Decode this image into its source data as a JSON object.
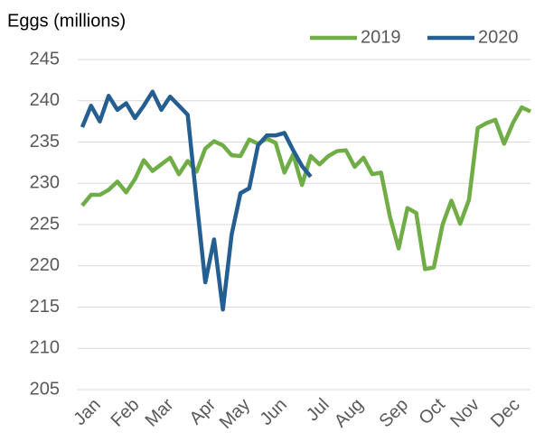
{
  "chart_data": {
    "type": "line",
    "y_axis_label": "Eggs (millions)",
    "x": [
      1,
      2,
      3,
      4,
      5,
      6,
      7,
      8,
      9,
      10,
      11,
      12,
      13,
      14,
      15,
      16,
      17,
      18,
      19,
      20,
      21,
      22,
      23,
      24,
      25,
      26,
      27,
      28,
      29,
      30,
      31,
      32,
      33,
      34,
      35,
      36,
      37,
      38,
      39,
      40,
      41,
      42,
      43,
      44,
      45,
      46,
      47,
      48,
      49,
      50,
      51,
      52
    ],
    "xlim": [
      1,
      52
    ],
    "xticks": [
      {
        "value": 2.8,
        "label": "Jan"
      },
      {
        "value": 7.2,
        "label": "Feb"
      },
      {
        "value": 11.1,
        "label": "Mar"
      },
      {
        "value": 15.9,
        "label": "Apr"
      },
      {
        "value": 19.8,
        "label": "May"
      },
      {
        "value": 24,
        "label": "Jun"
      },
      {
        "value": 28.8,
        "label": "Jul"
      },
      {
        "value": 32.7,
        "label": "Aug"
      },
      {
        "value": 37.8,
        "label": "Sep"
      },
      {
        "value": 42,
        "label": "Oct"
      },
      {
        "value": 45.9,
        "label": "Nov"
      },
      {
        "value": 50.5,
        "label": "Dec"
      }
    ],
    "ylim": [
      205,
      245
    ],
    "yticks": [
      205,
      210,
      215,
      220,
      225,
      230,
      235,
      240,
      245
    ],
    "grid": true,
    "legend": "top-right",
    "series": [
      {
        "name": "2019",
        "color": "#70ad47",
        "values": [
          227.3,
          228.6,
          228.6,
          229.2,
          230.2,
          228.9,
          230.5,
          232.8,
          231.5,
          232.3,
          233.1,
          231.1,
          232.7,
          231.4,
          234.2,
          235.1,
          234.6,
          233.4,
          233.3,
          235.3,
          234.8,
          235.4,
          234.9,
          231.3,
          233.5,
          229.8,
          233.3,
          232.3,
          233.3,
          233.9,
          234.0,
          232.0,
          233.1,
          231.1,
          231.3,
          226.0,
          222.1,
          227.0,
          226.4,
          219.6,
          219.8,
          225.0,
          227.9,
          225.1,
          228.0,
          236.7,
          237.3,
          237.7,
          234.8,
          237.3,
          239.2,
          238.7
        ]
      },
      {
        "name": "2020",
        "color": "#255e91",
        "values": [
          236.8,
          239.4,
          237.5,
          240.6,
          238.9,
          239.7,
          237.9,
          239.4,
          241.1,
          238.9,
          240.5,
          239.4,
          238.3,
          228.0,
          218.0,
          223.2,
          214.7,
          223.8,
          228.8,
          229.4,
          234.6,
          235.8,
          235.8,
          236.1,
          234.0,
          232.1,
          230.8,
          null,
          null,
          null,
          null,
          null,
          null,
          null,
          null,
          null,
          null,
          null,
          null,
          null,
          null,
          null,
          null,
          null,
          null,
          null,
          null,
          null,
          null,
          null,
          null,
          null
        ]
      }
    ]
  }
}
